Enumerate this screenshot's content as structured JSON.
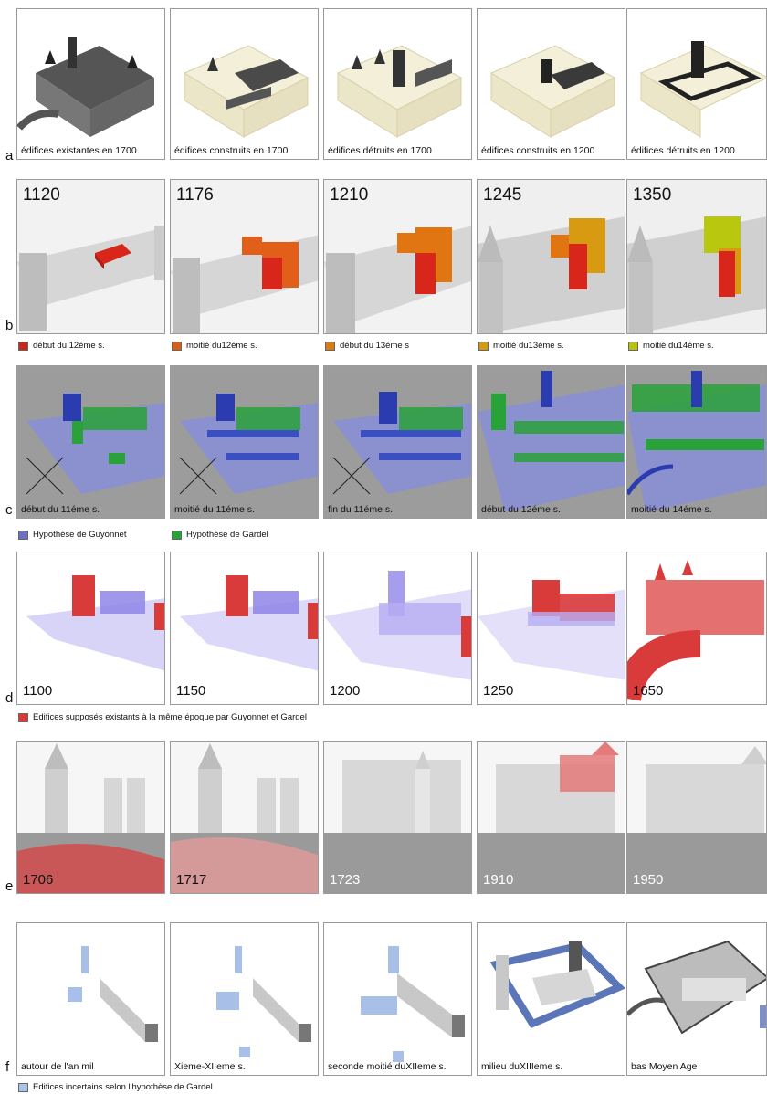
{
  "rows": {
    "a": {
      "label": "a",
      "captions": [
        "édifices existantes en 1700",
        "édifices construits en 1700",
        "édifices détruits en 1700",
        "édifices construits en 1200",
        "édifices détruits en 1200"
      ]
    },
    "b": {
      "label": "b",
      "years": [
        "1120",
        "1176",
        "1210",
        "1245",
        "1350"
      ],
      "legend": [
        {
          "text": "début du 12éme s.",
          "color": "#c8281c"
        },
        {
          "text": "moitié du12éme s.",
          "color": "#d4601a"
        },
        {
          "text": "début du 13éme s",
          "color": "#d97a12"
        },
        {
          "text": "moitié du13éme s.",
          "color": "#d49a10"
        },
        {
          "text": "moitié du14éme s.",
          "color": "#b7c40e"
        }
      ]
    },
    "c": {
      "label": "c",
      "captions": [
        "début du 11éme s.",
        "moitié du 11éme s.",
        "fin du 11éme s.",
        "début du 12éme s.",
        "moitié du 14éme s."
      ],
      "legend": [
        {
          "text": "Hypothèse de Guyonnet",
          "color": "#6d6fc0"
        },
        {
          "text": "Hypothèse de Gardel",
          "color": "#2aa23a"
        }
      ]
    },
    "d": {
      "label": "d",
      "years": [
        "1100",
        "1150",
        "1200",
        "1250",
        "1650"
      ],
      "legend": [
        {
          "text": "Edifices supposés existants à la même époque par  Guyonnet et Gardel",
          "color": "#d93a3a"
        }
      ]
    },
    "e": {
      "label": "e",
      "years": [
        "1706",
        "1717",
        "1723",
        "1910",
        "1950"
      ]
    },
    "f": {
      "label": "f",
      "captions": [
        "autour de l'an mil",
        "Xieme-XIIeme s.",
        "seconde moitié duXIIeme s.",
        "milieu duXIIIeme s.",
        "bas Moyen Age"
      ],
      "legend": [
        {
          "text": "Edifices incertains selon l'hypothèse de Gardel",
          "color": "#aac4e8"
        }
      ]
    }
  }
}
